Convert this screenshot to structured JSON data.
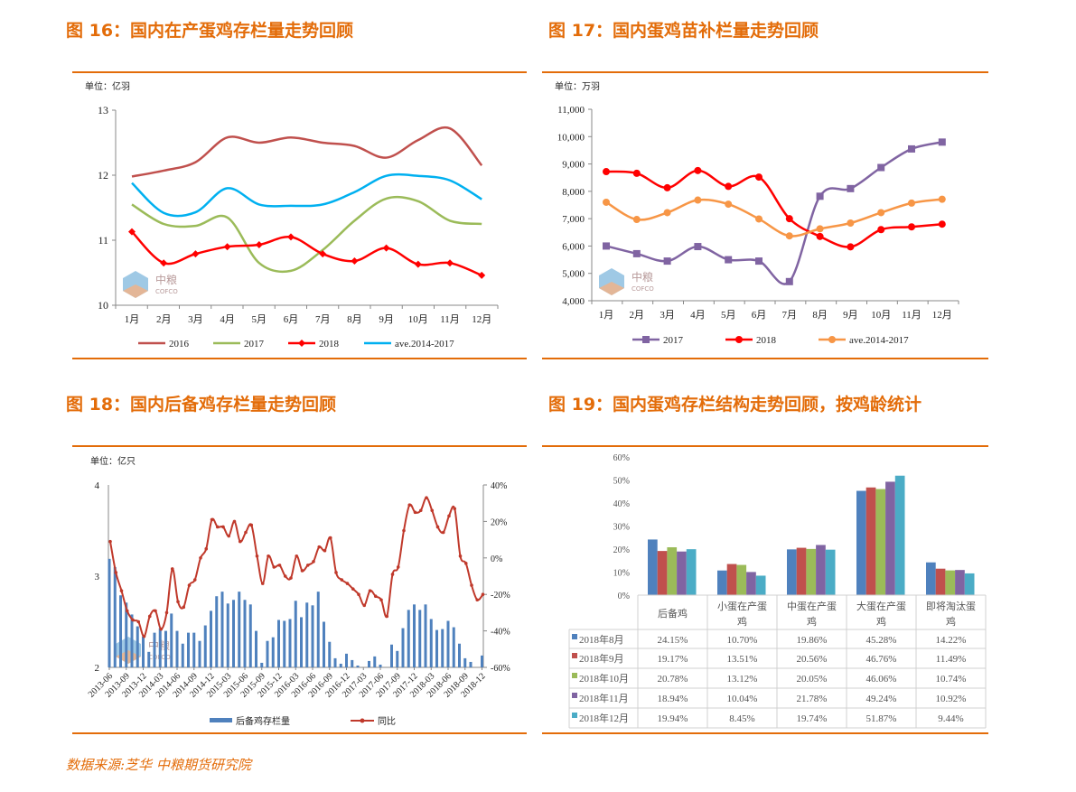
{
  "titles": [
    "图 16：国内在产蛋鸡存栏量走势回顾",
    "图 17：国内蛋鸡苗补栏量走势回顾",
    "图 18：国内后备鸡存栏量走势回顾",
    "图 19：国内蛋鸡存栏结构走势回顾，按鸡龄统计"
  ],
  "footer": "数据来源:芝华 中粮期货研究院",
  "watermark": "中粮 COFCO",
  "colors": {
    "accent": "#E36C09"
  },
  "chart_data": [
    {
      "type": "line",
      "unit": "单位：亿羽",
      "ylim": [
        10,
        13
      ],
      "yticks": [
        10,
        11,
        12,
        13
      ],
      "categories": [
        "1月",
        "2月",
        "3月",
        "4月",
        "5月",
        "6月",
        "7月",
        "8月",
        "9月",
        "10月",
        "11月",
        "12月"
      ],
      "series": [
        {
          "name": "2016",
          "color": "#C0504D",
          "marker": "none",
          "values": [
            11.98,
            12.07,
            12.2,
            12.58,
            12.5,
            12.58,
            12.5,
            12.45,
            12.27,
            12.54,
            12.72,
            12.15
          ]
        },
        {
          "name": "2017",
          "color": "#9BBB59",
          "marker": "none",
          "values": [
            11.55,
            11.25,
            11.22,
            11.35,
            10.65,
            10.53,
            10.85,
            11.3,
            11.64,
            11.6,
            11.3,
            11.25
          ]
        },
        {
          "name": "2018",
          "color": "#FF0000",
          "marker": "diamond",
          "values": [
            11.13,
            10.65,
            10.79,
            10.9,
            10.93,
            11.05,
            10.79,
            10.68,
            10.88,
            10.63,
            10.65,
            10.46
          ]
        },
        {
          "name": "ave.2014-2017",
          "color": "#00B0F0",
          "marker": "none",
          "values": [
            11.88,
            11.42,
            11.43,
            11.8,
            11.55,
            11.53,
            11.55,
            11.74,
            11.99,
            11.99,
            11.92,
            11.63
          ]
        }
      ]
    },
    {
      "type": "line",
      "unit": "单位：万羽",
      "ylim": [
        4000,
        11000
      ],
      "yticks": [
        "4,000",
        "5,000",
        "6,000",
        "7,000",
        "8,000",
        "9,000",
        "10,000",
        "11,000"
      ],
      "categories": [
        "1月",
        "2月",
        "3月",
        "4月",
        "5月",
        "6月",
        "7月",
        "8月",
        "9月",
        "10月",
        "11月",
        "12月"
      ],
      "series": [
        {
          "name": "2017",
          "color": "#8064A2",
          "marker": "square",
          "values": [
            6000,
            5720,
            5450,
            5980,
            5500,
            5450,
            4700,
            7820,
            8100,
            8870,
            9550,
            9800
          ]
        },
        {
          "name": "2018",
          "color": "#FF0000",
          "marker": "circle",
          "values": [
            8720,
            8660,
            8130,
            8760,
            8180,
            8520,
            7000,
            6350,
            5970,
            6600,
            6700,
            6800
          ]
        },
        {
          "name": "ave.2014-2017",
          "color": "#F79646",
          "marker": "circle",
          "values": [
            7600,
            6970,
            7220,
            7680,
            7530,
            6990,
            6370,
            6630,
            6840,
            7220,
            7570,
            7710
          ]
        }
      ]
    },
    {
      "type": "bar+line",
      "unit": "单位：亿只",
      "ylim": [
        2,
        4
      ],
      "yticks": [
        "2",
        "3",
        "4"
      ],
      "y2lim": [
        -60,
        40
      ],
      "y2ticks": [
        "-60%",
        "-40%",
        "-20%",
        "0%",
        "20%",
        "40%"
      ],
      "xticks": [
        "2013-06",
        "2013-09",
        "2013-12",
        "2014-03",
        "2014-06",
        "2014-09",
        "2014-12",
        "2015-03",
        "2015-06",
        "2015-09",
        "2015-12",
        "2016-03",
        "2016-06",
        "2016-09",
        "2016-12",
        "2017-03",
        "2017-06",
        "2017-09",
        "2017-12",
        "2018-03",
        "2018-06",
        "2018-09",
        "2018-12"
      ],
      "series": [
        {
          "name": "后备鸡存栏量",
          "color": "#4F81BD",
          "values": [
            3.19,
            3.1,
            2.79,
            2.71,
            2.58,
            2.45,
            2.34,
            2.17,
            2.38,
            2.43,
            2.4,
            2.59,
            2.4,
            2.26,
            2.38,
            2.38,
            2.29,
            2.46,
            2.62,
            2.78,
            2.83,
            2.7,
            2.74,
            2.83,
            2.74,
            2.69,
            2.4,
            2.05,
            2.29,
            2.33,
            2.52,
            2.51,
            2.53,
            2.73,
            2.55,
            2.71,
            2.68,
            2.83,
            2.5,
            2.28,
            2.1,
            2.04,
            2.15,
            2.08,
            2.02,
            2.0,
            2.07,
            2.12,
            2.03,
            1.99,
            2.25,
            2.18,
            2.43,
            2.63,
            2.69,
            2.63,
            2.69,
            2.53,
            2.41,
            2.42,
            2.51,
            2.44,
            2.26,
            2.1,
            2.06,
            2.0,
            2.13
          ]
        },
        {
          "name": "同比",
          "color": "#C0392B",
          "values": [
            9,
            -8,
            -18,
            -29,
            -34,
            -35,
            -43,
            -32,
            -29,
            -39,
            -30,
            -6,
            -24,
            -27,
            -15,
            -12,
            0,
            5,
            21,
            17,
            17,
            12,
            20,
            9,
            14,
            18,
            1,
            -14,
            1,
            -5,
            -4,
            -10,
            -11,
            1,
            -7,
            -4,
            -2,
            6,
            4,
            11,
            -8,
            -12,
            -14,
            -17,
            -20,
            -26,
            -18,
            -21,
            -23,
            -32,
            -9,
            -5,
            15,
            29,
            25,
            26,
            33,
            26,
            17,
            14,
            23,
            27,
            1,
            -3,
            -15,
            -23,
            -20
          ]
        }
      ]
    },
    {
      "type": "bar",
      "ylim": [
        0,
        60
      ],
      "yticks": [
        "0%",
        "10%",
        "20%",
        "30%",
        "40%",
        "50%",
        "60%"
      ],
      "categories": [
        "后备鸡",
        "小蛋在产蛋鸡",
        "中蛋在产蛋鸡",
        "大蛋在产蛋鸡",
        "即将淘汰蛋鸡"
      ],
      "series": [
        {
          "name": "2018年8月",
          "color": "#4F81BD",
          "values": [
            24.15,
            10.7,
            19.86,
            45.28,
            14.22
          ],
          "labels": [
            "24.15%",
            "10.70%",
            "19.86%",
            "45.28%",
            "14.22%"
          ]
        },
        {
          "name": "2018年9月",
          "color": "#C0504D",
          "values": [
            19.17,
            13.51,
            20.56,
            46.76,
            11.49
          ],
          "labels": [
            "19.17%",
            "13.51%",
            "20.56%",
            "46.76%",
            "11.49%"
          ]
        },
        {
          "name": "2018年10月",
          "color": "#9BBB59",
          "values": [
            20.78,
            13.12,
            20.05,
            46.06,
            10.74
          ],
          "labels": [
            "20.78%",
            "13.12%",
            "20.05%",
            "46.06%",
            "10.74%"
          ]
        },
        {
          "name": "2018年11月",
          "color": "#8064A2",
          "values": [
            18.94,
            10.04,
            21.78,
            49.24,
            10.92
          ],
          "labels": [
            "18.94%",
            "10.04%",
            "21.78%",
            "49.24%",
            "10.92%"
          ]
        },
        {
          "name": "2018年12月",
          "color": "#4BACC6",
          "values": [
            19.94,
            8.45,
            19.74,
            51.87,
            9.44
          ],
          "labels": [
            "19.94%",
            "8.45%",
            "19.74%",
            "51.87%",
            "9.44%"
          ]
        }
      ]
    }
  ]
}
